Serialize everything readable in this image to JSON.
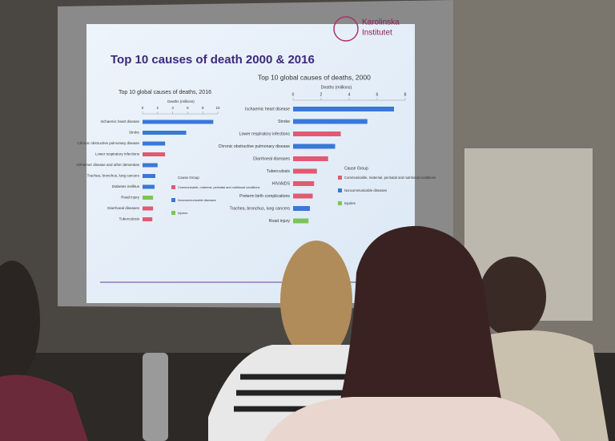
{
  "slide_title": "Top 10 causes of death 2000 & 2016",
  "logo": [
    "Karolinska",
    "Institutet"
  ],
  "chart_data": [
    {
      "type": "barh",
      "title": "Top 10 global causes of deaths, 2016",
      "x_label": "Deaths (millions)",
      "categories": [
        "Ischaemic heart disease",
        "Stroke",
        "Chronic obstructive pulmonary disease",
        "Lower respiratory infections",
        "Alzheimer disease and other dementias",
        "Trachea, bronchus, lung cancers",
        "Diabetes mellitus",
        "Road injury",
        "Diarrhoeal diseases",
        "Tuberculosis"
      ],
      "values": [
        9.4,
        5.8,
        3.0,
        3.0,
        2.0,
        1.7,
        1.6,
        1.4,
        1.4,
        1.3
      ],
      "colors": [
        "#3a78d8",
        "#3a78d8",
        "#3a78d8",
        "#e05a72",
        "#3a78d8",
        "#3a78d8",
        "#3a78d8",
        "#7cc45a",
        "#e05a72",
        "#e05a72"
      ],
      "xlim": [
        0,
        10
      ],
      "xticks": [
        0,
        2,
        4,
        6,
        8,
        10
      ],
      "legend": {
        "title": "Cause Group",
        "items": [
          {
            "name": "Communicable, maternal, perinatal and nutritional conditions",
            "color": "#e05a72"
          },
          {
            "name": "Noncommunicable diseases",
            "color": "#3a78d8"
          },
          {
            "name": "Injuries",
            "color": "#7cc45a"
          }
        ]
      }
    },
    {
      "type": "barh",
      "title": "Top 10 global causes of deaths, 2000",
      "x_label": "Deaths (millions)",
      "categories": [
        "Ischaemic heart disease",
        "Stroke",
        "Lower respiratory infections",
        "Chronic obstructive pulmonary disease",
        "Diarrhoeal diseases",
        "Tuberculosis",
        "HIV/AIDS",
        "Preterm birth complications",
        "Trachea, bronchus, lung cancers",
        "Road injury"
      ],
      "values": [
        7.2,
        5.3,
        3.4,
        3.0,
        2.5,
        1.7,
        1.5,
        1.4,
        1.2,
        1.1
      ],
      "colors": [
        "#3a78d8",
        "#3a78d8",
        "#e05a72",
        "#3a78d8",
        "#e05a72",
        "#e05a72",
        "#e05a72",
        "#e05a72",
        "#3a78d8",
        "#7cc45a"
      ],
      "xlim": [
        0,
        8
      ],
      "xticks": [
        0,
        2,
        4,
        6,
        8
      ],
      "legend": {
        "title": "Cause Group",
        "items": [
          {
            "name": "Communicable, maternal, perinatal and nutritional conditions",
            "color": "#e05a72"
          },
          {
            "name": "Noncommunicable diseases",
            "color": "#3a78d8"
          },
          {
            "name": "Injuries",
            "color": "#7cc45a"
          }
        ]
      }
    }
  ]
}
